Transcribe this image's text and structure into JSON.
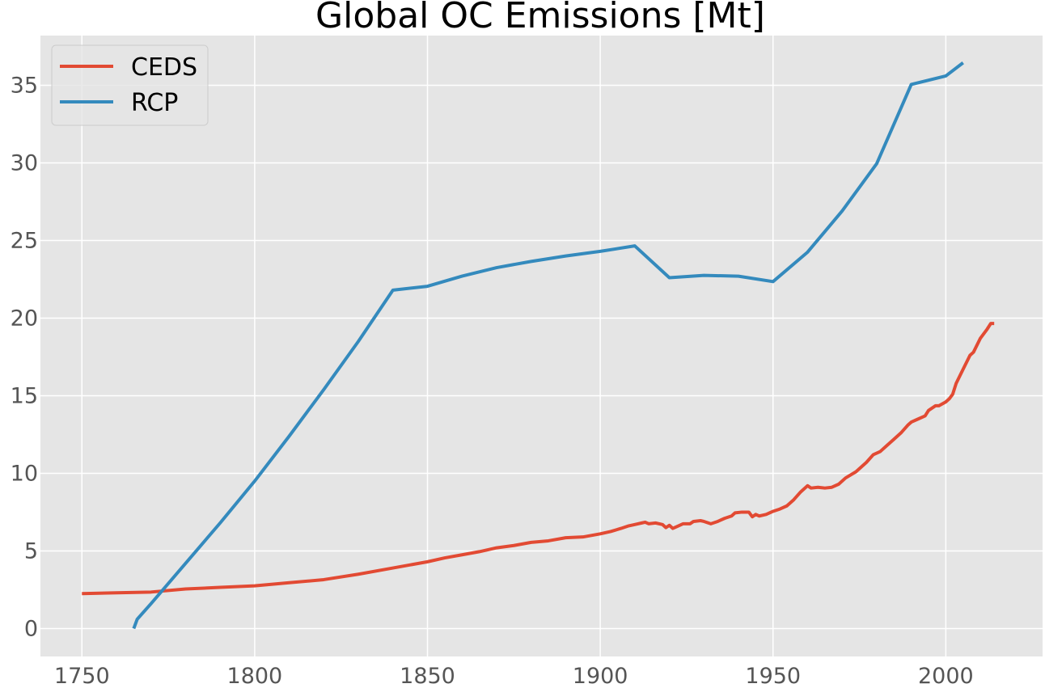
{
  "chart_data": {
    "type": "line",
    "title": "Global OC Emissions [Mt]",
    "xlabel": "",
    "ylabel": "",
    "xlim": [
      1738,
      2028
    ],
    "ylim": [
      -1.8,
      38.2
    ],
    "xticks": [
      1750,
      1800,
      1850,
      1900,
      1950,
      2000
    ],
    "yticks": [
      0,
      5,
      10,
      15,
      20,
      25,
      30,
      35
    ],
    "grid": true,
    "legend_position": "top-left",
    "colors": {
      "background": "#e5e5e5",
      "grid": "#ffffff",
      "ceds": "#e24a33",
      "rcp": "#348abd"
    },
    "series": [
      {
        "name": "CEDS",
        "color": "#e24a33",
        "points": [
          [
            1750,
            2.25
          ],
          [
            1760,
            2.3
          ],
          [
            1770,
            2.35
          ],
          [
            1780,
            2.55
          ],
          [
            1790,
            2.65
          ],
          [
            1800,
            2.75
          ],
          [
            1810,
            2.95
          ],
          [
            1820,
            3.15
          ],
          [
            1830,
            3.5
          ],
          [
            1840,
            3.9
          ],
          [
            1850,
            4.3
          ],
          [
            1855,
            4.55
          ],
          [
            1860,
            4.75
          ],
          [
            1865,
            4.95
          ],
          [
            1870,
            5.2
          ],
          [
            1875,
            5.35
          ],
          [
            1880,
            5.55
          ],
          [
            1885,
            5.65
          ],
          [
            1890,
            5.85
          ],
          [
            1895,
            5.9
          ],
          [
            1900,
            6.1
          ],
          [
            1903,
            6.25
          ],
          [
            1906,
            6.45
          ],
          [
            1908,
            6.6
          ],
          [
            1910,
            6.7
          ],
          [
            1912,
            6.8
          ],
          [
            1913,
            6.85
          ],
          [
            1914,
            6.75
          ],
          [
            1916,
            6.8
          ],
          [
            1918,
            6.7
          ],
          [
            1919,
            6.5
          ],
          [
            1920,
            6.65
          ],
          [
            1921,
            6.45
          ],
          [
            1922,
            6.55
          ],
          [
            1924,
            6.75
          ],
          [
            1926,
            6.75
          ],
          [
            1927,
            6.9
          ],
          [
            1929,
            6.95
          ],
          [
            1930,
            6.9
          ],
          [
            1932,
            6.75
          ],
          [
            1934,
            6.9
          ],
          [
            1936,
            7.1
          ],
          [
            1938,
            7.25
          ],
          [
            1939,
            7.45
          ],
          [
            1941,
            7.5
          ],
          [
            1943,
            7.5
          ],
          [
            1944,
            7.2
          ],
          [
            1945,
            7.35
          ],
          [
            1946,
            7.25
          ],
          [
            1948,
            7.35
          ],
          [
            1950,
            7.55
          ],
          [
            1952,
            7.7
          ],
          [
            1954,
            7.9
          ],
          [
            1956,
            8.3
          ],
          [
            1958,
            8.8
          ],
          [
            1960,
            9.2
          ],
          [
            1961,
            9.05
          ],
          [
            1963,
            9.1
          ],
          [
            1965,
            9.05
          ],
          [
            1967,
            9.1
          ],
          [
            1969,
            9.3
          ],
          [
            1971,
            9.7
          ],
          [
            1974,
            10.1
          ],
          [
            1977,
            10.7
          ],
          [
            1979,
            11.2
          ],
          [
            1981,
            11.4
          ],
          [
            1983,
            11.8
          ],
          [
            1985,
            12.2
          ],
          [
            1987,
            12.6
          ],
          [
            1989,
            13.1
          ],
          [
            1990,
            13.3
          ],
          [
            1992,
            13.5
          ],
          [
            1994,
            13.7
          ],
          [
            1995,
            14.05
          ],
          [
            1997,
            14.35
          ],
          [
            1998,
            14.35
          ],
          [
            2000,
            14.6
          ],
          [
            2001,
            14.8
          ],
          [
            2002,
            15.1
          ],
          [
            2003,
            15.8
          ],
          [
            2005,
            16.7
          ],
          [
            2007,
            17.6
          ],
          [
            2008,
            17.8
          ],
          [
            2010,
            18.7
          ],
          [
            2012,
            19.3
          ],
          [
            2013,
            19.65
          ],
          [
            2014,
            19.65
          ]
        ]
      },
      {
        "name": "RCP",
        "color": "#348abd",
        "points": [
          [
            1765,
            0.0
          ],
          [
            1766,
            0.6
          ],
          [
            1770,
            1.6
          ],
          [
            1780,
            4.2
          ],
          [
            1790,
            6.8
          ],
          [
            1800,
            9.5
          ],
          [
            1810,
            12.4
          ],
          [
            1820,
            15.4
          ],
          [
            1830,
            18.5
          ],
          [
            1840,
            21.8
          ],
          [
            1850,
            22.05
          ],
          [
            1860,
            22.7
          ],
          [
            1870,
            23.25
          ],
          [
            1880,
            23.65
          ],
          [
            1890,
            24.0
          ],
          [
            1900,
            24.3
          ],
          [
            1910,
            24.65
          ],
          [
            1920,
            22.6
          ],
          [
            1930,
            22.75
          ],
          [
            1940,
            22.7
          ],
          [
            1950,
            22.35
          ],
          [
            1960,
            24.25
          ],
          [
            1970,
            26.9
          ],
          [
            1980,
            29.95
          ],
          [
            1990,
            35.05
          ],
          [
            2000,
            35.6
          ],
          [
            2005,
            36.45
          ]
        ]
      }
    ]
  }
}
